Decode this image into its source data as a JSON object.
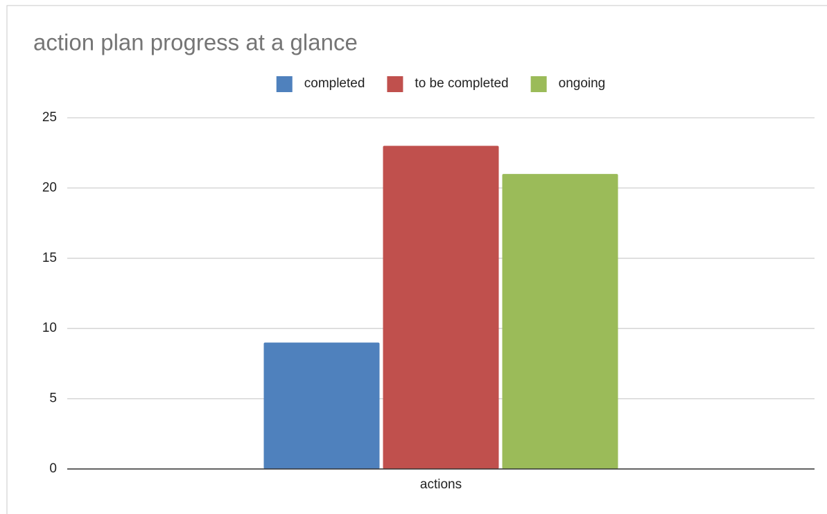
{
  "chart_data": {
    "type": "bar",
    "title": "action plan progress at a glance",
    "categories": [
      "actions"
    ],
    "series": [
      {
        "name": "completed",
        "color": "#4f81bd",
        "values": [
          9
        ]
      },
      {
        "name": "to be completed",
        "color": "#c0504d",
        "values": [
          23
        ]
      },
      {
        "name": "ongoing",
        "color": "#9bbb59",
        "values": [
          21
        ]
      }
    ],
    "ylim": [
      0,
      25
    ],
    "yticks": [
      0,
      5,
      10,
      15,
      20,
      25
    ],
    "grid": true,
    "legend": "top"
  }
}
